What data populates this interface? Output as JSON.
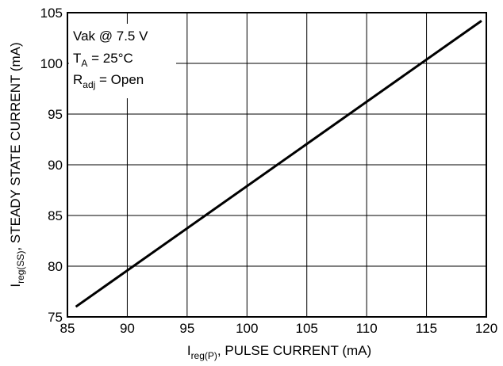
{
  "chart_data": {
    "type": "line",
    "xlabel": {
      "main": "I",
      "sub": "reg(P)",
      "rest": ", PULSE CURRENT (mA)"
    },
    "ylabel": {
      "main": "I",
      "sub": "reg(SS)",
      "rest": ", STEADY STATE CURRENT (mA)"
    },
    "xlim": [
      85,
      120
    ],
    "ylim": [
      75,
      105
    ],
    "xticks": [
      85,
      90,
      95,
      100,
      105,
      110,
      115,
      120
    ],
    "yticks": [
      75,
      80,
      85,
      90,
      95,
      100,
      105
    ],
    "grid": true,
    "series": [
      {
        "x": [
          85.7,
          119.6
        ],
        "y": [
          76.0,
          104.2
        ]
      }
    ],
    "annotation": {
      "line1": "Vak @ 7.5 V",
      "line2": {
        "main": "T",
        "sub": "A",
        "rest": " = 25°C"
      },
      "line3": {
        "main": "R",
        "sub": "adj",
        "rest": " = Open"
      }
    }
  }
}
